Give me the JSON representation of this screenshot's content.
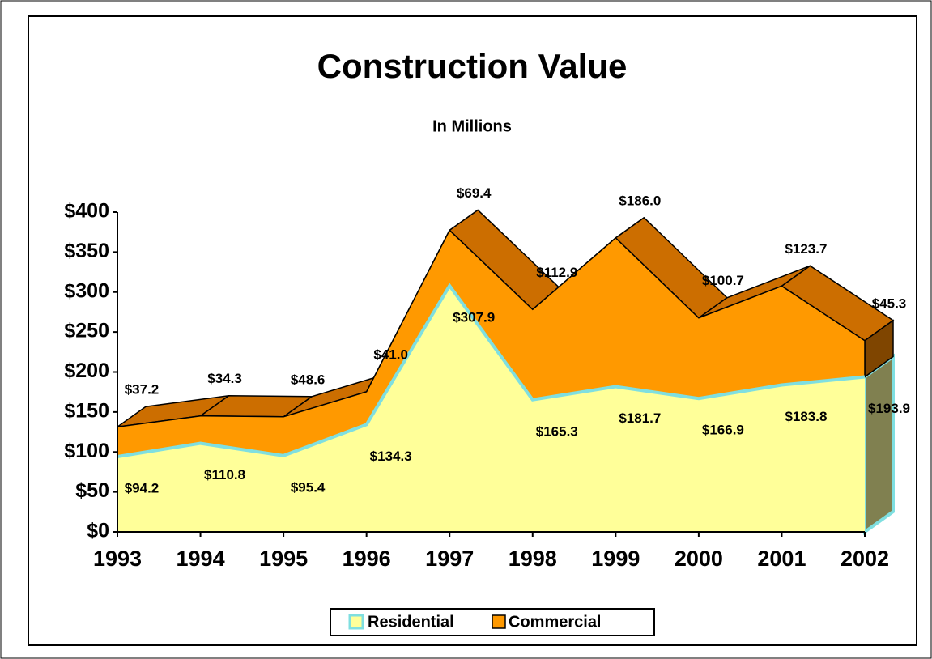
{
  "chart_data": {
    "type": "area3d",
    "title": "Construction Value",
    "subtitle": "In Millions",
    "categories": [
      "1993",
      "1994",
      "1995",
      "1996",
      "1997",
      "1998",
      "1999",
      "2000",
      "2001",
      "2002"
    ],
    "series": [
      {
        "name": "Residential",
        "color": "#ffff99",
        "values": [
          94.2,
          110.8,
          95.4,
          134.3,
          307.9,
          165.3,
          181.7,
          166.9,
          183.8,
          193.9
        ],
        "value_labels": [
          "$94.2",
          "$110.8",
          "$95.4",
          "$134.3",
          "$307.9",
          "$165.3",
          "$181.7",
          "$166.9",
          "$183.8",
          "$193.9"
        ]
      },
      {
        "name": "Commercial",
        "color": "#ff9900",
        "values": [
          37.2,
          34.3,
          48.6,
          41.0,
          69.4,
          112.9,
          186.0,
          100.7,
          123.7,
          45.3
        ],
        "value_labels": [
          "$37.2",
          "$34.3",
          "$48.6",
          "$41.0",
          "$69.4",
          "$112.9",
          "$186.0",
          "$100.7",
          "$123.7",
          "$45.3"
        ]
      }
    ],
    "stacked": true,
    "ylim": [
      0,
      400
    ],
    "yticks": [
      {
        "value": 0,
        "label": "$0"
      },
      {
        "value": 50,
        "label": "$50"
      },
      {
        "value": 100,
        "label": "$100"
      },
      {
        "value": 150,
        "label": "$150"
      },
      {
        "value": 200,
        "label": "$200"
      },
      {
        "value": 250,
        "label": "$250"
      },
      {
        "value": 300,
        "label": "$300"
      },
      {
        "value": 350,
        "label": "$350"
      },
      {
        "value": 400,
        "label": "$400"
      }
    ],
    "legend": "bottom"
  }
}
